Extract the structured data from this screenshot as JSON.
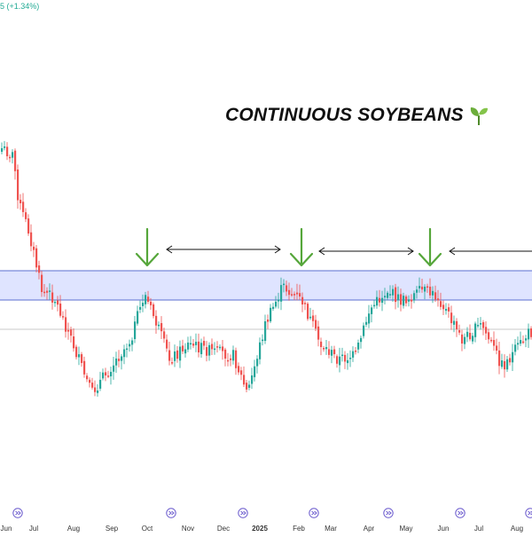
{
  "header": {
    "change_text": "5 (+1.34%)"
  },
  "title": {
    "text": "CONTINUOUS SOYBEANS",
    "icon": "seedling-icon"
  },
  "colors": {
    "up": "#26a69a",
    "down": "#ef5350",
    "zone_fill": "#dfe4ff",
    "zone_line": "#5b6fd1",
    "arrow_green": "#55a63a",
    "arrow_black": "#111111",
    "price_line": "#c8c8c8",
    "marker": "#6a5acd"
  },
  "chart_data": {
    "type": "candlestick",
    "title": "CONTINUOUS SOYBEANS",
    "x_ticks": [
      "Jun",
      "Jul",
      "Aug",
      "Sep",
      "Oct",
      "Nov",
      "Dec",
      "2025",
      "Feb",
      "Mar",
      "Apr",
      "May",
      "Jun",
      "Jul",
      "Aug"
    ],
    "bold_ticks": [
      "2025"
    ],
    "resistance_zone": {
      "label": "",
      "from": "Jul",
      "to": "Aug"
    },
    "close_path_estimated": [
      {
        "t": "Jun",
        "v": 0.84
      },
      {
        "t": "Jun",
        "v": 0.82
      },
      {
        "t": "Jul",
        "v": 0.7
      },
      {
        "t": "Jul",
        "v": 0.62
      },
      {
        "t": "Jul",
        "v": 0.47
      },
      {
        "t": "Jul",
        "v": 0.45
      },
      {
        "t": "Aug",
        "v": 0.35
      },
      {
        "t": "Aug",
        "v": 0.2
      },
      {
        "t": "Sep",
        "v": 0.27
      },
      {
        "t": "Sep",
        "v": 0.34
      },
      {
        "t": "Oct",
        "v": 0.46
      },
      {
        "t": "Oct",
        "v": 0.38
      },
      {
        "t": "Nov",
        "v": 0.29
      },
      {
        "t": "Nov",
        "v": 0.33
      },
      {
        "t": "Dec",
        "v": 0.31
      },
      {
        "t": "Dec",
        "v": 0.3
      },
      {
        "t": "2025",
        "v": 0.2
      },
      {
        "t": "2025",
        "v": 0.38
      },
      {
        "t": "Feb",
        "v": 0.48
      },
      {
        "t": "Feb",
        "v": 0.44
      },
      {
        "t": "Mar",
        "v": 0.33
      },
      {
        "t": "Mar",
        "v": 0.29
      },
      {
        "t": "Apr",
        "v": 0.3
      },
      {
        "t": "Apr",
        "v": 0.42
      },
      {
        "t": "May",
        "v": 0.47
      },
      {
        "t": "May",
        "v": 0.44
      },
      {
        "t": "Jun",
        "v": 0.47
      },
      {
        "t": "Jun",
        "v": 0.45
      },
      {
        "t": "Jul",
        "v": 0.34
      },
      {
        "t": "Jul",
        "v": 0.38
      },
      {
        "t": "Aug",
        "v": 0.27
      },
      {
        "t": "Aug",
        "v": 0.36
      }
    ],
    "annotations": [
      {
        "type": "green-down-arrow",
        "at": "Oct"
      },
      {
        "type": "double-arrow",
        "from": "Oct",
        "to": "Feb"
      },
      {
        "type": "green-down-arrow",
        "at": "Feb"
      },
      {
        "type": "double-arrow",
        "from": "Feb",
        "to": "May"
      },
      {
        "type": "green-down-arrow",
        "at": "May"
      },
      {
        "type": "double-arrow",
        "from": "Jun",
        "to": "Aug"
      }
    ]
  }
}
